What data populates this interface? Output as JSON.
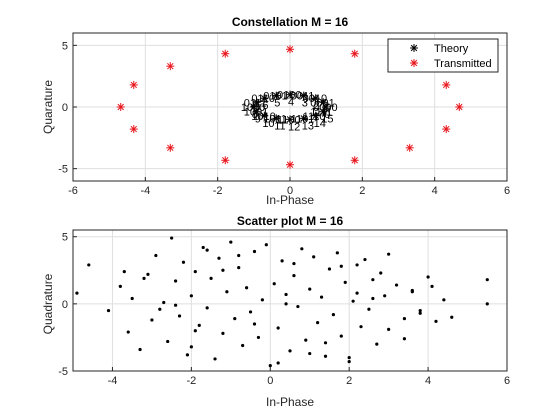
{
  "chart_data": [
    {
      "type": "scatter",
      "title": "Constellation M = 16",
      "xlabel": "In-Phase",
      "ylabel": "Quarature",
      "xlim": [
        -6,
        6
      ],
      "ylim": [
        -6,
        6
      ],
      "xticks": [
        -6,
        -4,
        -2,
        0,
        2,
        4,
        6
      ],
      "yticks": [
        -5,
        0,
        5
      ],
      "xtick_labels": [
        "-6",
        "-4",
        "-2",
        "0",
        "2",
        "4",
        "6"
      ],
      "ytick_labels": [
        "-5",
        "0",
        "5"
      ],
      "grid": true,
      "legend_position": "top-right",
      "legend": [
        "Theory",
        "Transmitted"
      ],
      "series": [
        {
          "name": "Theory",
          "marker": "asterisk",
          "color": "#000000",
          "x": [
            1.0,
            0.92,
            0.71,
            0.38,
            0.0,
            -0.38,
            -0.71,
            -0.92,
            -1.0,
            -0.92,
            -0.71,
            -0.38,
            0.0,
            0.38,
            0.71,
            0.92
          ],
          "y": [
            0.0,
            0.38,
            0.71,
            0.92,
            1.0,
            0.92,
            0.71,
            0.38,
            0.0,
            -0.38,
            -0.71,
            -0.92,
            -1.0,
            -0.92,
            -0.71,
            -0.38
          ]
        },
        {
          "name": "Transmitted",
          "marker": "asterisk",
          "color": "#e8141b",
          "x": [
            4.68,
            4.32,
            3.31,
            1.79,
            0.0,
            -1.79,
            -3.31,
            -4.32,
            -4.68,
            -4.32,
            -3.31,
            -1.79,
            0.0,
            1.79,
            3.31,
            4.32
          ],
          "y": [
            0.0,
            1.79,
            3.31,
            4.32,
            4.68,
            4.32,
            3.31,
            1.79,
            0.0,
            -1.79,
            -3.31,
            -4.32,
            -4.68,
            -4.32,
            -3.31,
            -1.79
          ]
        }
      ],
      "point_labels": [
        {
          "text": "0000",
          "x": 1.0,
          "y": 0.0
        },
        {
          "text": "0001",
          "x": 0.92,
          "y": 0.38
        },
        {
          "text": "0010",
          "x": 0.71,
          "y": 0.71
        },
        {
          "text": "0011",
          "x": 0.38,
          "y": 0.92
        },
        {
          "text": "0100",
          "x": 0.0,
          "y": 1.0
        },
        {
          "text": "0101",
          "x": -0.38,
          "y": 0.92
        },
        {
          "text": "0110",
          "x": -0.71,
          "y": 0.71
        },
        {
          "text": "0111",
          "x": -0.92,
          "y": 0.38
        },
        {
          "text": "1000",
          "x": -1.0,
          "y": 0.0
        },
        {
          "text": "1001",
          "x": -0.92,
          "y": -0.38
        },
        {
          "text": "1010",
          "x": -0.71,
          "y": -0.71
        },
        {
          "text": "1011",
          "x": -0.38,
          "y": -0.92
        },
        {
          "text": "1100",
          "x": 0.0,
          "y": -1.0
        },
        {
          "text": "1101",
          "x": 0.38,
          "y": -0.92
        },
        {
          "text": "1110",
          "x": 0.71,
          "y": -0.71
        },
        {
          "text": "1111",
          "x": 0.92,
          "y": -0.38
        },
        {
          "text": "0",
          "x": 1.0,
          "y": 0.0
        },
        {
          "text": "1",
          "x": 0.92,
          "y": 0.38
        },
        {
          "text": "2",
          "x": 0.71,
          "y": 0.71
        },
        {
          "text": "3",
          "x": 0.38,
          "y": 0.92
        },
        {
          "text": "4",
          "x": 0.0,
          "y": 1.0
        },
        {
          "text": "5",
          "x": -0.38,
          "y": 0.92
        },
        {
          "text": "6",
          "x": -0.71,
          "y": 0.71
        },
        {
          "text": "7",
          "x": -0.92,
          "y": 0.38
        },
        {
          "text": "8",
          "x": -1.0,
          "y": 0.0
        },
        {
          "text": "9",
          "x": -0.92,
          "y": -0.38
        },
        {
          "text": "10",
          "x": -0.71,
          "y": -0.71
        },
        {
          "text": "11",
          "x": -0.38,
          "y": -0.92
        },
        {
          "text": "12",
          "x": 0.0,
          "y": -1.0
        },
        {
          "text": "13",
          "x": 0.38,
          "y": -0.92
        },
        {
          "text": "14",
          "x": 0.71,
          "y": -0.71
        },
        {
          "text": "15",
          "x": 0.92,
          "y": -0.38
        }
      ]
    },
    {
      "type": "scatter",
      "title": "Scatter plot M = 16",
      "xlabel": "In-Phase",
      "ylabel": "Quadrature",
      "xlim": [
        -5,
        6
      ],
      "ylim": [
        -5,
        5.5
      ],
      "xticks": [
        -4,
        -2,
        0,
        2,
        4,
        6
      ],
      "yticks": [
        -5,
        0,
        5
      ],
      "xtick_labels": [
        "-4",
        "-2",
        "0",
        "2",
        "4",
        "6"
      ],
      "ytick_labels": [
        "-5",
        "0",
        "5"
      ],
      "grid": true,
      "series": [
        {
          "marker": "dot",
          "color": "#000000",
          "x": [
            -4.9,
            -4.6,
            -4.1,
            -3.8,
            -3.6,
            -3.5,
            -3.3,
            -3.1,
            -3.0,
            -2.9,
            -2.7,
            -2.6,
            -2.5,
            -2.4,
            -2.3,
            -2.2,
            -2.1,
            -2.0,
            -1.9,
            -1.8,
            -1.7,
            -1.6,
            -1.5,
            -1.4,
            -1.3,
            -1.2,
            -1.1,
            -1.0,
            -0.9,
            -0.8,
            -0.7,
            -0.6,
            -0.5,
            -0.4,
            -0.3,
            -0.2,
            -0.1,
            0.0,
            0.1,
            0.2,
            0.3,
            0.4,
            0.5,
            0.6,
            0.7,
            0.8,
            0.9,
            1.0,
            1.1,
            1.2,
            1.3,
            1.4,
            1.5,
            1.6,
            1.7,
            1.8,
            1.9,
            2.0,
            2.1,
            2.2,
            2.3,
            2.4,
            2.5,
            2.6,
            2.7,
            2.8,
            2.9,
            3.0,
            3.2,
            3.4,
            3.6,
            3.8,
            4.0,
            4.2,
            4.4,
            4.6,
            5.5,
            5.5,
            -2.8,
            -2.0,
            -1.2,
            -0.4,
            0.6,
            1.4,
            2.2,
            3.0,
            3.8,
            -3.2,
            -1.6,
            0.2,
            1.8,
            3.4,
            -2.4,
            -0.8,
            1.0,
            2.6,
            4.1,
            -3.7,
            -1.9,
            0.4,
            2.0,
            3.6
          ],
          "y": [
            0.8,
            2.9,
            -0.5,
            1.3,
            -2.1,
            0.4,
            -3.4,
            2.2,
            -1.2,
            3.6,
            0.1,
            -2.8,
            4.9,
            1.7,
            -0.9,
            3.1,
            -3.8,
            0.6,
            2.4,
            -1.6,
            4.2,
            -0.3,
            1.9,
            -4.1,
            3.4,
            -2.2,
            0.9,
            4.6,
            -1.1,
            2.7,
            -3.1,
            1.2,
            -0.6,
            3.9,
            -2.5,
            0.3,
            4.4,
            -4.6,
            1.5,
            -1.8,
            3.2,
            0.7,
            -3.5,
            2.1,
            -0.2,
            4.1,
            -2.7,
            1.1,
            3.5,
            -1.4,
            0.5,
            -3.9,
            2.6,
            -0.8,
            3.8,
            -2.4,
            1.6,
            -4.3,
            0.2,
            2.9,
            -1.7,
            3.3,
            -0.4,
            1.8,
            -3.0,
            2.3,
            0.6,
            -1.9,
            1.4,
            -2.6,
            0.9,
            -0.7,
            2.0,
            -1.3,
            0.3,
            -1.0,
            1.8,
            0.0,
            -0.4,
            -3.2,
            2.5,
            -1.5,
            3.0,
            -2.9,
            0.8,
            3.7,
            -0.5,
            1.9,
            4.0,
            -4.4,
            2.8,
            -1.1,
            -0.1,
            3.6,
            -3.7,
            0.4,
            1.3,
            2.4,
            -2.0,
            0.0,
            -4.0,
            1.0
          ]
        }
      ]
    }
  ]
}
